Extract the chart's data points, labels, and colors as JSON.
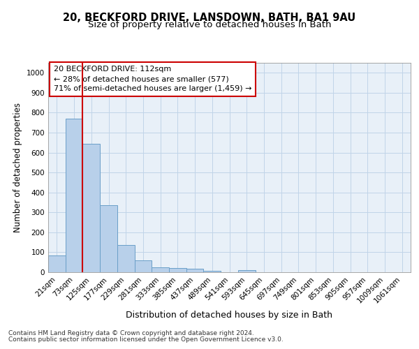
{
  "title1": "20, BECKFORD DRIVE, LANSDOWN, BATH, BA1 9AU",
  "title2": "Size of property relative to detached houses in Bath",
  "xlabel": "Distribution of detached houses by size in Bath",
  "ylabel": "Number of detached properties",
  "bar_values": [
    85,
    770,
    645,
    335,
    135,
    60,
    25,
    22,
    18,
    7,
    0,
    10,
    0,
    0,
    0,
    0,
    0,
    0,
    0,
    0,
    0
  ],
  "bar_labels": [
    "21sqm",
    "73sqm",
    "125sqm",
    "177sqm",
    "229sqm",
    "281sqm",
    "333sqm",
    "385sqm",
    "437sqm",
    "489sqm",
    "541sqm",
    "593sqm",
    "645sqm",
    "697sqm",
    "749sqm",
    "801sqm",
    "853sqm",
    "905sqm",
    "957sqm",
    "1009sqm",
    "1061sqm"
  ],
  "bar_color": "#b8d0ea",
  "bar_edge_color": "#6a9fc8",
  "annotation_box_line1": "20 BECKFORD DRIVE: 112sqm",
  "annotation_box_line2": "← 28% of detached houses are smaller (577)",
  "annotation_box_line3": "71% of semi-detached houses are larger (1,459) →",
  "annotation_box_color": "#cc0000",
  "vline_x": 1.5,
  "vline_color": "#cc0000",
  "ylim_max": 1050,
  "yticks": [
    0,
    100,
    200,
    300,
    400,
    500,
    600,
    700,
    800,
    900,
    1000
  ],
  "grid_color": "#c0d4e8",
  "bg_color": "#e8f0f8",
  "footer1": "Contains HM Land Registry data © Crown copyright and database right 2024.",
  "footer2": "Contains public sector information licensed under the Open Government Licence v3.0.",
  "title1_fontsize": 10.5,
  "title2_fontsize": 9.5,
  "xlabel_fontsize": 9,
  "ylabel_fontsize": 8.5,
  "tick_fontsize": 7.5,
  "annotation_fontsize": 8,
  "footer_fontsize": 6.5
}
